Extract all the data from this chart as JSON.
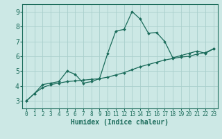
{
  "xlabel": "Humidex (Indice chaleur)",
  "background_color": "#cce8e5",
  "grid_color": "#aacfcc",
  "line_color": "#1a6b5a",
  "x_values": [
    0,
    1,
    2,
    3,
    4,
    5,
    6,
    7,
    8,
    9,
    10,
    11,
    12,
    13,
    14,
    15,
    16,
    17,
    18,
    19,
    20,
    21,
    22,
    23
  ],
  "y1_values": [
    3.0,
    3.5,
    4.1,
    4.2,
    4.3,
    5.0,
    4.8,
    4.2,
    4.3,
    4.5,
    6.2,
    7.7,
    7.8,
    9.0,
    8.5,
    7.55,
    7.6,
    7.0,
    5.9,
    6.05,
    6.2,
    6.35,
    6.2,
    6.5
  ],
  "y2_values": [
    3.0,
    3.5,
    3.9,
    4.1,
    4.2,
    4.3,
    4.35,
    4.4,
    4.45,
    4.5,
    4.6,
    4.75,
    4.9,
    5.1,
    5.3,
    5.45,
    5.6,
    5.75,
    5.85,
    5.95,
    6.0,
    6.15,
    6.25,
    6.5
  ],
  "xlim": [
    -0.5,
    23.5
  ],
  "ylim": [
    2.5,
    9.5
  ],
  "yticks": [
    3,
    4,
    5,
    6,
    7,
    8,
    9
  ],
  "xticks": [
    0,
    1,
    2,
    3,
    4,
    5,
    6,
    7,
    8,
    9,
    10,
    11,
    12,
    13,
    14,
    15,
    16,
    17,
    18,
    19,
    20,
    21,
    22,
    23
  ],
  "xlabel_fontsize": 7,
  "ytick_fontsize": 7,
  "xtick_fontsize": 5.5
}
